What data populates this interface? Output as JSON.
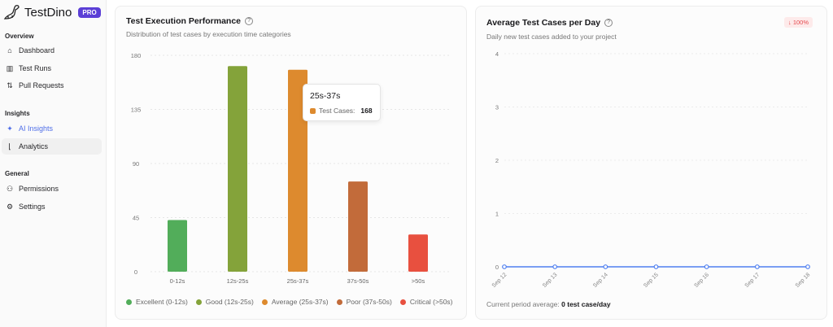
{
  "sidebar": {
    "brand": "TestDino",
    "badge": "PRO",
    "sections": [
      {
        "label": "Overview",
        "items": [
          {
            "label": "Dashboard",
            "icon": "home-icon"
          },
          {
            "label": "Test Runs",
            "icon": "bar-chart-icon"
          },
          {
            "label": "Pull Requests",
            "icon": "git-pull-request-icon"
          }
        ]
      },
      {
        "label": "Insights",
        "items": [
          {
            "label": "AI Insights",
            "icon": "sparkles-icon"
          },
          {
            "label": "Analytics",
            "icon": "line-chart-icon"
          }
        ]
      },
      {
        "label": "General",
        "items": [
          {
            "label": "Permissions",
            "icon": "users-icon"
          },
          {
            "label": "Settings",
            "icon": "gear-icon"
          }
        ]
      }
    ],
    "active": "Analytics"
  },
  "perf": {
    "title": "Test Execution Performance",
    "subtitle": "Distribution of test cases by execution time categories",
    "tooltip": {
      "title": "25s-37s",
      "label": "Test Cases:",
      "value": "168"
    }
  },
  "avg": {
    "title": "Average Test Cases per Day",
    "subtitle": "Daily new test cases added to your project",
    "badge": "↓ 100%",
    "footer_label": "Current period average:",
    "footer_value": "0 test case/day"
  },
  "chart_data": [
    {
      "type": "bar",
      "title": "Test Execution Performance",
      "categories": [
        "0-12s",
        "12s-25s",
        "25s-37s",
        "37s-50s",
        ">50s"
      ],
      "values": [
        43,
        171,
        168,
        75,
        31
      ],
      "ylim": [
        0,
        180
      ],
      "yticks": [
        0,
        45,
        90,
        135,
        180
      ],
      "colors": [
        "#52ad5a",
        "#84a33a",
        "#dd8a2e",
        "#c26b3a",
        "#e8503f"
      ],
      "legend": [
        "Excellent (0-12s)",
        "Good (12s-25s)",
        "Average (25s-37s)",
        "Poor (37s-50s)",
        "Critical (>50s)"
      ],
      "legend_position": "bottom",
      "grid": true
    },
    {
      "type": "line",
      "title": "Average Test Cases per Day",
      "x": [
        "Sep 12",
        "Sep 13",
        "Sep 14",
        "Sep 15",
        "Sep 16",
        "Sep 17",
        "Sep 18"
      ],
      "values": [
        0,
        0,
        0,
        0,
        0,
        0,
        0
      ],
      "ylim": [
        0,
        4
      ],
      "yticks": [
        0,
        1,
        2,
        3,
        4
      ],
      "color": "#4f7ff0",
      "grid": true
    }
  ]
}
